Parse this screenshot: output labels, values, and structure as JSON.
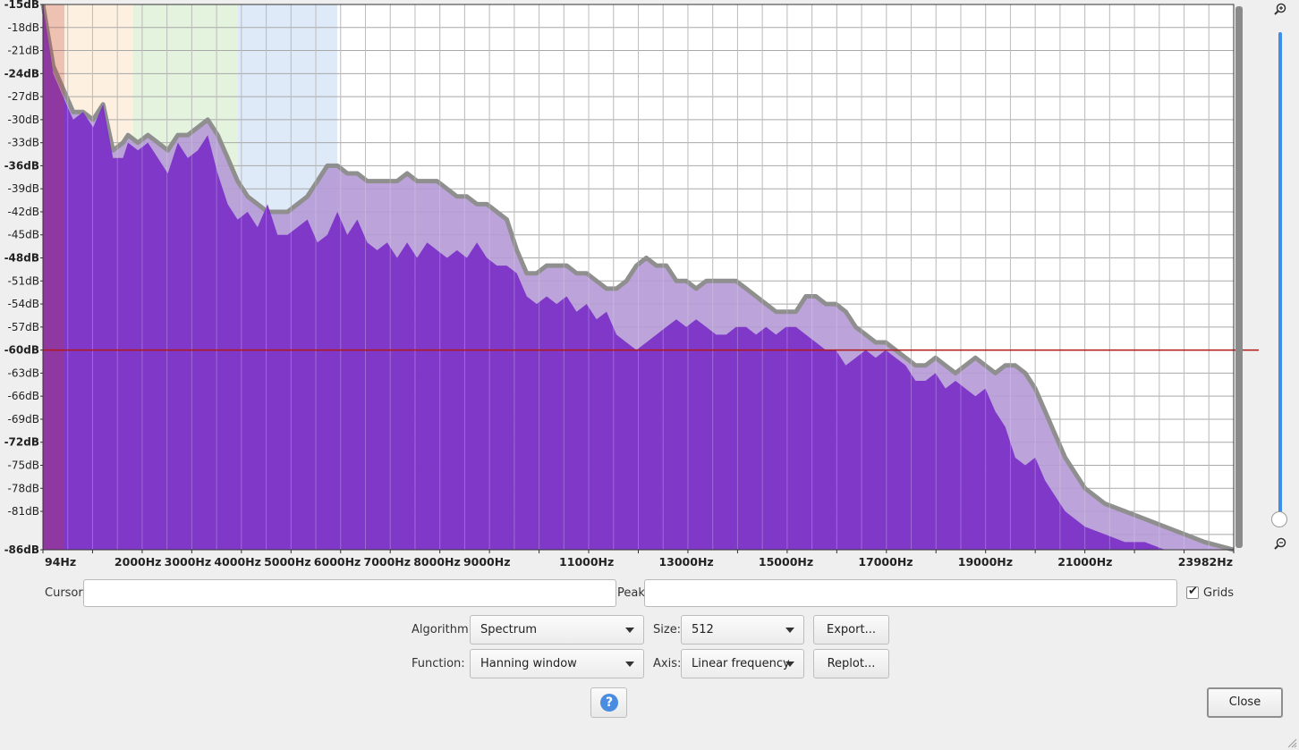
{
  "spectrum": {
    "db_labels": [
      "-15dB",
      "-18dB",
      "-21dB",
      "-24dB",
      "-27dB",
      "-30dB",
      "-33dB",
      "-36dB",
      "-39dB",
      "-42dB",
      "-45dB",
      "-48dB",
      "-51dB",
      "-54dB",
      "-57dB",
      "-60dB",
      "-63dB",
      "-66dB",
      "-69dB",
      "-72dB",
      "-75dB",
      "-78dB",
      "-81dB",
      "-86dB"
    ],
    "bold_db_labels": [
      "-15dB",
      "-24dB",
      "-36dB",
      "-48dB",
      "-60dB",
      "-72dB",
      "-86dB"
    ],
    "freq_labels": [
      "94Hz",
      "2000Hz",
      "3000Hz",
      "4000Hz",
      "5000Hz",
      "6000Hz",
      "7000Hz",
      "8000Hz",
      "9000Hz",
      "11000Hz",
      "13000Hz",
      "15000Hz",
      "17000Hz",
      "19000Hz",
      "21000Hz",
      "23982Hz"
    ],
    "cursor_line_db": -60,
    "colors": {
      "spectrum_fill": "#7b2fc7",
      "envelope_fill": "#b59ad6",
      "envelope_edge": "#8f8f8f",
      "cursor_line": "#b01818",
      "grid": "#a8a8a8",
      "band_orange": "#fdf0e0",
      "band_green": "#e3f3dd",
      "band_blue": "#dfeaf8"
    }
  },
  "chart_data": {
    "type": "area",
    "title": "",
    "xlabel": "",
    "ylabel": "",
    "xlim": [
      94,
      23982
    ],
    "ylim": [
      -86,
      -15
    ],
    "grid": true,
    "series": [
      {
        "x": [
          94,
          300,
          500,
          700,
          900,
          1100,
          1300,
          1500,
          1700,
          1800,
          2000,
          2200,
          2400,
          2600,
          2800,
          3000,
          3200,
          3400,
          3600,
          3800,
          4000,
          4200,
          4400,
          4600,
          4800,
          5000,
          5200,
          5400,
          5600,
          5800,
          6000,
          6200,
          6400,
          6600,
          6800,
          7000,
          7200,
          7400,
          7600,
          7800,
          8000,
          8200,
          8400,
          8600,
          8800,
          9000,
          9200,
          9400,
          9600,
          9800,
          10000,
          10200,
          10400,
          10600,
          10800,
          11000,
          11200,
          11400,
          11600,
          11800,
          12000,
          12200,
          12400,
          12600,
          12800,
          13000,
          13200,
          13400,
          13600,
          13800,
          14000,
          14200,
          14400,
          14600,
          14800,
          15000,
          15200,
          15400,
          15600,
          15800,
          16000,
          16200,
          16400,
          16600,
          16800,
          17000,
          17200,
          17400,
          17600,
          17800,
          18000,
          18200,
          18400,
          18600,
          18800,
          19000,
          19200,
          19400,
          19600,
          19800,
          20000,
          20200,
          20400,
          20600,
          20800,
          21000,
          21400,
          21800,
          22200,
          22600,
          23000,
          23400,
          23982
        ],
        "values": [
          -15,
          -24,
          -27,
          -30,
          -29,
          -31,
          -28,
          -35,
          -35,
          -33,
          -34,
          -33,
          -35,
          -37,
          -33,
          -35,
          -34,
          -32,
          -37,
          -41,
          -43,
          -42,
          -44,
          -41,
          -45,
          -45,
          -44,
          -43,
          -46,
          -45,
          -42,
          -45,
          -43,
          -46,
          -47,
          -46,
          -48,
          -46,
          -48,
          -46,
          -47,
          -48,
          -47,
          -48,
          -46,
          -48,
          -49,
          -49,
          -50,
          -53,
          -54,
          -53,
          -54,
          -53,
          -55,
          -54,
          -56,
          -55,
          -58,
          -59,
          -60,
          -59,
          -58,
          -57,
          -56,
          -57,
          -56,
          -57,
          -58,
          -58,
          -57,
          -57,
          -58,
          -57,
          -58,
          -57,
          -57,
          -58,
          -59,
          -60,
          -60,
          -62,
          -61,
          -60,
          -61,
          -60,
          -61,
          -62,
          -64,
          -64,
          -63,
          -65,
          -64,
          -65,
          -66,
          -65,
          -68,
          -70,
          -74,
          -75,
          -74,
          -77,
          -79,
          -81,
          -82,
          -83,
          -84,
          -85,
          -85,
          -86,
          -86,
          -86,
          -86
        ]
      },
      {
        "x": [
          94,
          300,
          500,
          700,
          900,
          1100,
          1300,
          1500,
          1700,
          1800,
          2000,
          2200,
          2400,
          2600,
          2800,
          3000,
          3200,
          3400,
          3600,
          3800,
          4000,
          4200,
          4400,
          4600,
          4800,
          5000,
          5200,
          5400,
          5600,
          5800,
          6000,
          6200,
          6400,
          6600,
          6800,
          7000,
          7200,
          7400,
          7600,
          7800,
          8000,
          8200,
          8400,
          8600,
          8800,
          9000,
          9200,
          9400,
          9600,
          9800,
          10000,
          10200,
          10400,
          10600,
          10800,
          11000,
          11200,
          11400,
          11600,
          11800,
          12000,
          12200,
          12400,
          12600,
          12800,
          13000,
          13200,
          13400,
          13600,
          13800,
          14000,
          14200,
          14400,
          14600,
          14800,
          15000,
          15200,
          15400,
          15600,
          15800,
          16000,
          16200,
          16400,
          16600,
          16800,
          17000,
          17200,
          17400,
          17600,
          17800,
          18000,
          18200,
          18400,
          18600,
          18800,
          19000,
          19200,
          19400,
          19600,
          19800,
          20000,
          20200,
          20400,
          20600,
          20800,
          21000,
          21400,
          21800,
          22200,
          22600,
          23000,
          23400,
          23982
        ],
        "values": [
          -15,
          -23,
          -26,
          -29,
          -29,
          -30,
          -28,
          -34,
          -33,
          -32,
          -33,
          -32,
          -33,
          -34,
          -32,
          -32,
          -31,
          -30,
          -32,
          -35,
          -38,
          -40,
          -41,
          -42,
          -42,
          -42,
          -41,
          -40,
          -38,
          -36,
          -36,
          -37,
          -37,
          -38,
          -38,
          -38,
          -38,
          -37,
          -38,
          -38,
          -38,
          -39,
          -40,
          -40,
          -41,
          -41,
          -42,
          -43,
          -47,
          -50,
          -50,
          -49,
          -49,
          -49,
          -50,
          -50,
          -51,
          -52,
          -52,
          -51,
          -49,
          -48,
          -49,
          -49,
          -51,
          -51,
          -52,
          -51,
          -51,
          -51,
          -51,
          -52,
          -53,
          -54,
          -55,
          -55,
          -55,
          -53,
          -53,
          -54,
          -54,
          -55,
          -57,
          -58,
          -59,
          -59,
          -60,
          -61,
          -62,
          -62,
          -61,
          -62,
          -63,
          -62,
          -61,
          -62,
          -63,
          -62,
          -62,
          -63,
          -65,
          -68,
          -71,
          -74,
          -76,
          -78,
          -80,
          -81,
          -82,
          -83,
          -84,
          -85,
          -86
        ]
      }
    ]
  },
  "controls": {
    "cursor_label": "Cursor:",
    "cursor_value": "",
    "peak_label": "Peak:",
    "peak_value": "",
    "grids_label": "Grids",
    "grids_checked": true,
    "algorithm_label": "Algorithm:",
    "algorithm_value": "Spectrum",
    "size_label": "Size:",
    "size_value": "512",
    "function_label": "Function:",
    "function_value": "Hanning window",
    "axis_label": "Axis:",
    "axis_value": "Linear frequency",
    "export_label": "Export...",
    "replot_label": "Replot...",
    "help_glyph": "?",
    "close_label": "Close"
  },
  "icons": {
    "zoom_in": "zoom-in-icon",
    "zoom_out": "zoom-out-icon",
    "help": "help-icon",
    "resize": "resize-grip-icon"
  }
}
